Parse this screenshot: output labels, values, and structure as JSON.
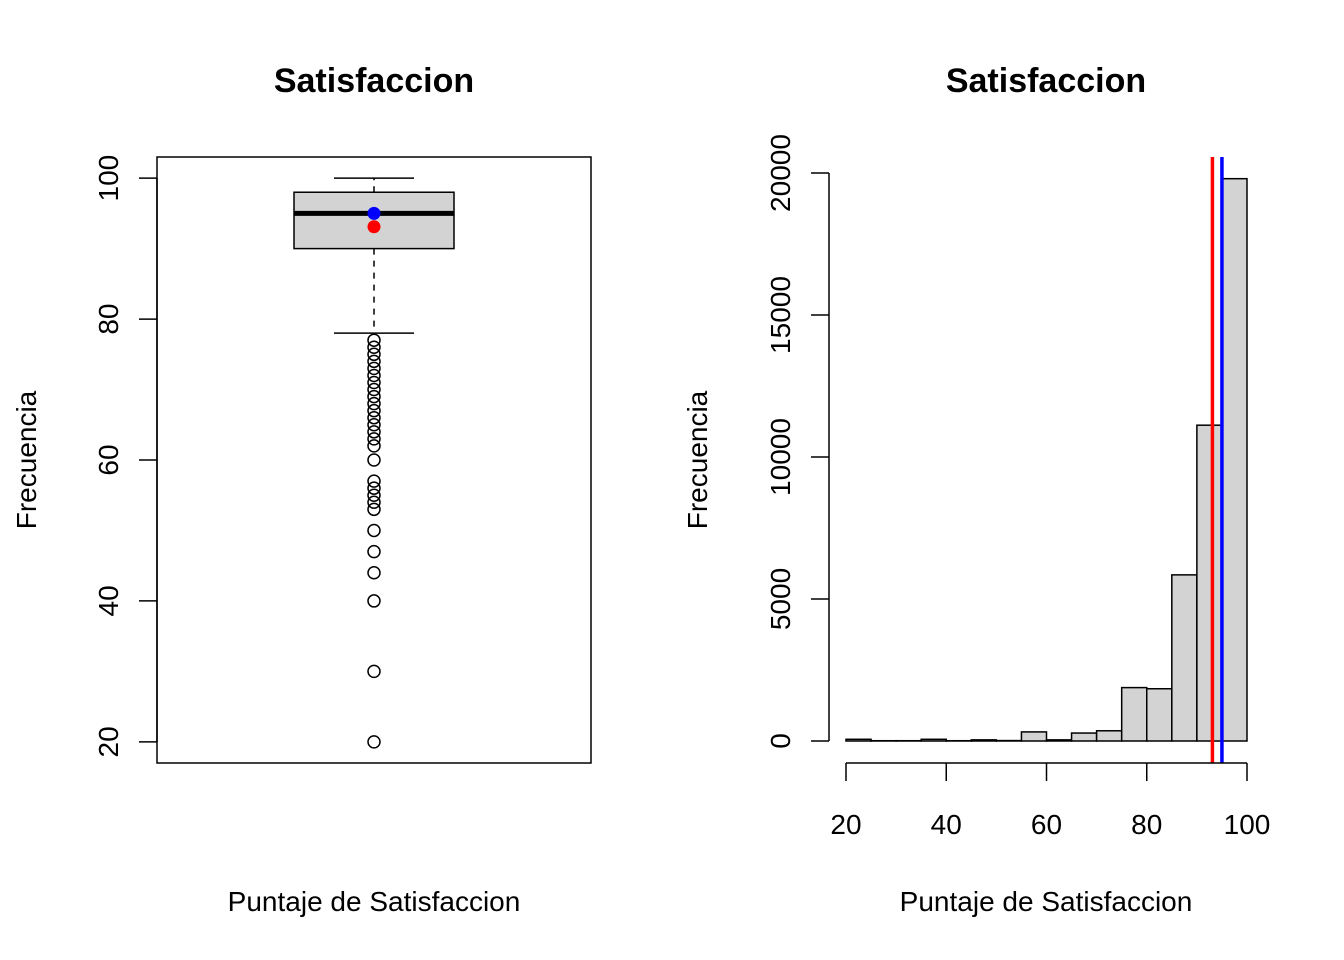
{
  "chart_data": [
    {
      "type": "boxplot",
      "title": "Satisfaccion",
      "xlabel": "Puntaje de Satisfaccion",
      "ylabel": "Frecuencia",
      "ylim": [
        17,
        103
      ],
      "yticks": [
        "20",
        "40",
        "60",
        "80",
        "100"
      ],
      "box": {
        "whisker_low": 78,
        "q1": 90,
        "median": 95,
        "q3": 98,
        "whisker_high": 100
      },
      "outliers": [
        77,
        76,
        75,
        74,
        73,
        72,
        71,
        70,
        69,
        68,
        67,
        66,
        65,
        64,
        63,
        62,
        60,
        57,
        56,
        55,
        54,
        53,
        50,
        47,
        44,
        40,
        30,
        20
      ],
      "points": [
        {
          "label": "median",
          "value": 95,
          "color": "#0000ff"
        },
        {
          "label": "mean",
          "value": 93.1,
          "color": "#ff0000"
        }
      ],
      "colors": {
        "box_fill": "#d3d3d3"
      }
    },
    {
      "type": "bar",
      "title": "Satisfaccion",
      "xlabel": "Puntaje de Satisfaccion",
      "ylabel": "Frecuencia",
      "xlim": [
        20,
        100
      ],
      "ylim": [
        0,
        20000
      ],
      "xticks": [
        "20",
        "40",
        "60",
        "80",
        "100"
      ],
      "yticks": [
        "0",
        "5000",
        "10000",
        "15000",
        "20000"
      ],
      "bins": [
        {
          "from": 20,
          "to": 25,
          "count": 60
        },
        {
          "from": 25,
          "to": 30,
          "count": 10
        },
        {
          "from": 30,
          "to": 35,
          "count": 10
        },
        {
          "from": 35,
          "to": 40,
          "count": 60
        },
        {
          "from": 40,
          "to": 45,
          "count": 10
        },
        {
          "from": 45,
          "to": 50,
          "count": 40
        },
        {
          "from": 50,
          "to": 55,
          "count": 15
        },
        {
          "from": 55,
          "to": 60,
          "count": 320
        },
        {
          "from": 60,
          "to": 65,
          "count": 40
        },
        {
          "from": 65,
          "to": 70,
          "count": 280
        },
        {
          "from": 70,
          "to": 75,
          "count": 360
        },
        {
          "from": 75,
          "to": 80,
          "count": 1880
        },
        {
          "from": 80,
          "to": 85,
          "count": 1840
        },
        {
          "from": 85,
          "to": 90,
          "count": 5850
        },
        {
          "from": 90,
          "to": 95,
          "count": 11120
        },
        {
          "from": 95,
          "to": 100,
          "count": 19800
        }
      ],
      "vlines": [
        {
          "label": "mean",
          "value": 93.1,
          "color": "#ff0000"
        },
        {
          "label": "median",
          "value": 95,
          "color": "#0000ff"
        }
      ],
      "colors": {
        "bar_fill": "#d3d3d3"
      }
    }
  ]
}
